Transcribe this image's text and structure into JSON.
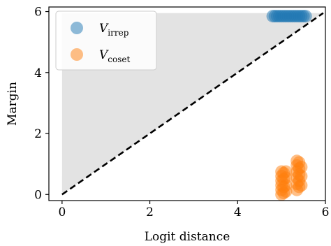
{
  "chart_data": {
    "type": "scatter",
    "xlabel": "Logit distance",
    "ylabel": "Margin",
    "xlim": [
      -0.3,
      6.0
    ],
    "ylim": [
      -0.2,
      6.15
    ],
    "x_ticks": [
      "0",
      "2",
      "4",
      "6"
    ],
    "y_ticks": [
      "0",
      "2",
      "4",
      "6"
    ],
    "x_tick_values": [
      0,
      2,
      4,
      6
    ],
    "y_tick_values": [
      0,
      2,
      4,
      6
    ],
    "grid": false,
    "legend_position": "top-left",
    "reference_line": {
      "style": "dashed",
      "color": "#000000",
      "from": [
        0,
        0
      ],
      "to": [
        5.95,
        5.95
      ]
    },
    "shaded_region": {
      "color": "#e3e3e3",
      "description_points": [
        [
          0,
          0
        ],
        [
          5.95,
          5.95
        ],
        [
          0,
          5.95
        ]
      ]
    },
    "series": [
      {
        "name": "V_irrep",
        "name_main": "V",
        "name_sub": "irrep",
        "color": "#1f77b4",
        "x": [
          4.8,
          4.85,
          4.9,
          4.95,
          5.0,
          5.05,
          5.1,
          5.15,
          5.2,
          5.25,
          5.3,
          5.35,
          5.4,
          5.45,
          5.5,
          5.55
        ],
        "y": [
          5.85,
          5.85,
          5.85,
          5.85,
          5.85,
          5.85,
          5.85,
          5.85,
          5.85,
          5.85,
          5.85,
          5.85,
          5.85,
          5.85,
          5.85,
          5.85
        ]
      },
      {
        "name": "V_coset",
        "name_main": "V",
        "name_sub": "coset",
        "color": "#ff7f0e",
        "x": [
          5.0,
          5.0,
          5.0,
          5.0,
          5.0,
          5.0,
          5.05,
          5.05,
          5.05,
          5.05,
          5.1,
          5.1,
          5.1,
          5.1,
          5.35,
          5.35,
          5.35,
          5.35,
          5.35,
          5.35,
          5.4,
          5.4,
          5.4,
          5.4,
          5.4,
          5.45,
          5.45,
          5.45
        ],
        "y": [
          0.0,
          0.15,
          0.3,
          0.45,
          0.6,
          0.75,
          0.05,
          0.25,
          0.5,
          0.7,
          0.1,
          0.3,
          0.55,
          0.75,
          0.15,
          0.35,
          0.55,
          0.75,
          0.95,
          1.1,
          0.25,
          0.45,
          0.65,
          0.85,
          1.05,
          0.3,
          0.6,
          0.9
        ]
      }
    ]
  }
}
